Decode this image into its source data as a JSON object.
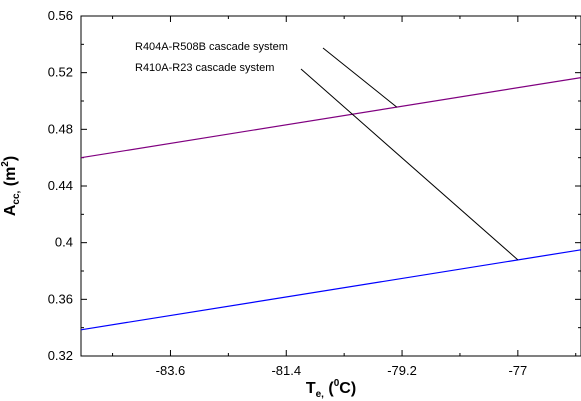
{
  "chart_data": {
    "type": "line",
    "xlabel": {
      "main": "T",
      "sub": "e,",
      "pre": " (",
      "sup": "0",
      "post": "C)"
    },
    "ylabel": {
      "main": "A",
      "sub": "cc,",
      "pre": " (m",
      "sup": "2",
      "post": ")"
    },
    "xlim": [
      -85.3,
      -75.8
    ],
    "ylim": [
      0.32,
      0.56
    ],
    "x_ticks": [
      -83.6,
      -81.4,
      -79.2,
      -77
    ],
    "x_tick_labels": [
      "-83.6",
      "-81.4",
      "-79.2",
      "-77"
    ],
    "y_ticks": [
      0.32,
      0.36,
      0.4,
      0.44,
      0.48,
      0.52,
      0.56
    ],
    "y_tick_labels": [
      "0.32",
      "0.36",
      "0.4",
      "0.44",
      "0.48",
      "0.52",
      "0.56"
    ],
    "grid": false,
    "series": [
      {
        "name": "R404A-R508B cascade system",
        "color": "#800080",
        "x": [
          -85.3,
          -75.8
        ],
        "y": [
          0.46,
          0.5165
        ]
      },
      {
        "name": "R410A-R23 cascade system",
        "color": "#0000ff",
        "x": [
          -85.3,
          -75.8
        ],
        "y": [
          0.3385,
          0.395
        ]
      }
    ],
    "annotations": [
      {
        "text": "R404A-R508B cascade system",
        "target_series": 0,
        "target_x": -79.3
      },
      {
        "text": "R410A-R23 cascade system",
        "target_series": 1,
        "target_x": -77.0
      }
    ]
  }
}
